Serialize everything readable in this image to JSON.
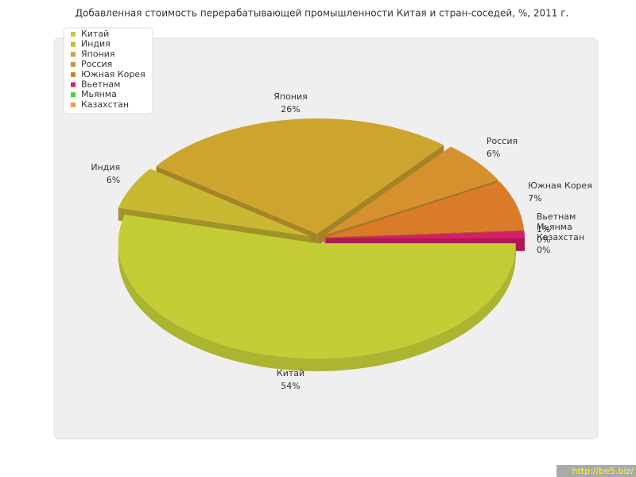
{
  "chart_data": {
    "type": "pie",
    "title": "Добавленная стоимость перерабатывающей промышленности Китая и стран-соседей, %, 2011 г.",
    "categories": [
      "Китай",
      "Индия",
      "Япония",
      "Россия",
      "Южная Корея",
      "Вьетнам",
      "Мьянма",
      "Казахстан"
    ],
    "values": [
      54,
      6,
      26,
      6,
      7,
      1,
      0,
      0
    ],
    "value_labels": [
      "54%",
      "6%",
      "26%",
      "6%",
      "7%",
      "1%",
      "0%",
      "0%"
    ],
    "colors": [
      "#c4cc36",
      "#c9b831",
      "#cda52e",
      "#d4912e",
      "#da7b2a",
      "#d81e6a",
      "#4fd12a",
      "#e3a02e"
    ],
    "legend": "top-left"
  },
  "watermark": "http://be5.biz/"
}
